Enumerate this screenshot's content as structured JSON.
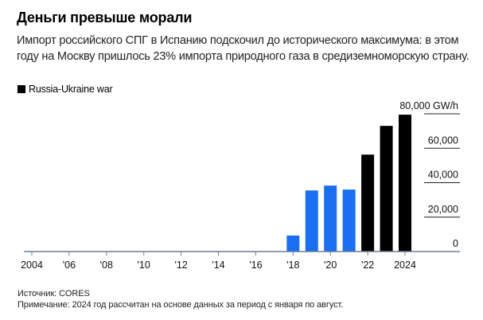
{
  "chart_data": {
    "type": "bar",
    "title": "Деньги превыше морали",
    "subtitle": "Импорт российского СПГ в Испанию подскочил до исторического максимума: в этом году на Москву пришлось 23% импорта природного газа в средиземноморскую страну.",
    "legend": [
      {
        "name": "Russia-Ukraine war",
        "color": "#000000"
      }
    ],
    "legend_placement": "top-left",
    "unit": "GW/h",
    "categories": [
      2004,
      2005,
      2006,
      2007,
      2008,
      2009,
      2010,
      2011,
      2012,
      2013,
      2014,
      2015,
      2016,
      2017,
      2018,
      2019,
      2020,
      2021,
      2022,
      2023,
      2024
    ],
    "values": [
      0,
      0,
      0,
      0,
      0,
      0,
      0,
      0,
      0,
      0,
      0,
      0,
      0,
      0,
      9300,
      35500,
      38300,
      36000,
      56300,
      73000,
      79500
    ],
    "war_from": 2022,
    "colors": {
      "pre_war": "#1a6ef0",
      "war": "#000000",
      "baseline": "#6a7e98",
      "grid": "#222222"
    },
    "x_tick_labels": [
      "2004",
      "'06",
      "'08",
      "'10",
      "'12",
      "'14",
      "'16",
      "'18",
      "'20",
      "'22",
      "2024"
    ],
    "x_tick_years": [
      2004,
      2006,
      2008,
      2010,
      2012,
      2014,
      2016,
      2018,
      2020,
      2022,
      2024
    ],
    "y_ticks": [
      0,
      20000,
      40000,
      60000,
      80000
    ],
    "y_tick_labels": [
      "0",
      "20,000",
      "40,000",
      "60,000",
      "80,000 GW/h"
    ],
    "ylim": [
      0,
      80000
    ],
    "y_axis_side": "right",
    "grid": true,
    "xlabel": "",
    "ylabel": ""
  },
  "footer": {
    "source": "Источник: CORES",
    "note": "Примечание: 2024 год рассчитан на основе данных за период с января по август."
  }
}
